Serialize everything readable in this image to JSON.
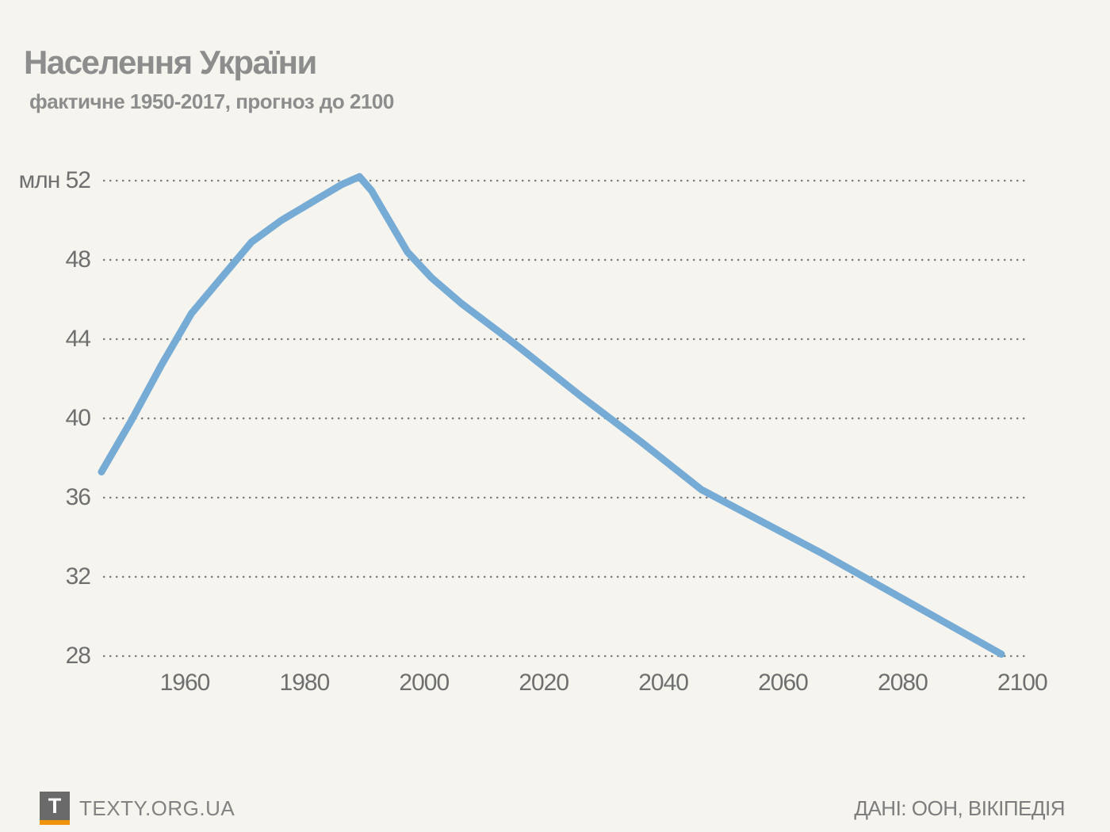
{
  "header": {
    "title": "Населення України",
    "subtitle": "фактичне 1950-2017, прогноз до 2100"
  },
  "chart_data": {
    "type": "line",
    "title": "Населення України",
    "subtitle": "фактичне 1950-2017, прогноз до 2100",
    "unit_label": "млн",
    "series": [
      {
        "name": "Населення України, млн",
        "points": [
          [
            1950,
            37.3
          ],
          [
            1955,
            39.9
          ],
          [
            1960,
            42.7
          ],
          [
            1965,
            45.3
          ],
          [
            1970,
            47.1
          ],
          [
            1975,
            48.9
          ],
          [
            1980,
            50.0
          ],
          [
            1985,
            50.9
          ],
          [
            1990,
            51.8
          ],
          [
            1993,
            52.2
          ],
          [
            1995,
            51.5
          ],
          [
            2001,
            48.4
          ],
          [
            2005,
            47.1
          ],
          [
            2010,
            45.8
          ],
          [
            2017,
            44.2
          ],
          [
            2020,
            43.5
          ],
          [
            2030,
            41.1
          ],
          [
            2040,
            38.8
          ],
          [
            2050,
            36.4
          ],
          [
            2060,
            34.8
          ],
          [
            2070,
            33.2
          ],
          [
            2080,
            31.5
          ],
          [
            2090,
            29.8
          ],
          [
            2100,
            28.1
          ]
        ]
      }
    ],
    "x_ticks": [
      1960,
      1980,
      2000,
      2020,
      2040,
      2060,
      2080,
      2100
    ],
    "y_ticks": [
      28,
      32,
      36,
      40,
      44,
      48,
      52
    ],
    "xlim": [
      1950,
      2100
    ],
    "ylim": [
      28,
      52
    ],
    "grid": "horizontal dotted",
    "legend": "none"
  },
  "footer": {
    "logo_letter": "T",
    "site": "TEXTY.ORG.UA",
    "source": "ДАНІ: ООН, ВІКІПЕДІЯ"
  },
  "colors": {
    "background": "#f5f4ef",
    "line": "#76abd5",
    "gridline": "#565656",
    "title_text": "#8d8d8d",
    "tick_text": "#6f6f6f",
    "logo_gray": "#6a6a6a",
    "logo_orange": "#f2930d",
    "footer_text": "#7d7d7d"
  }
}
